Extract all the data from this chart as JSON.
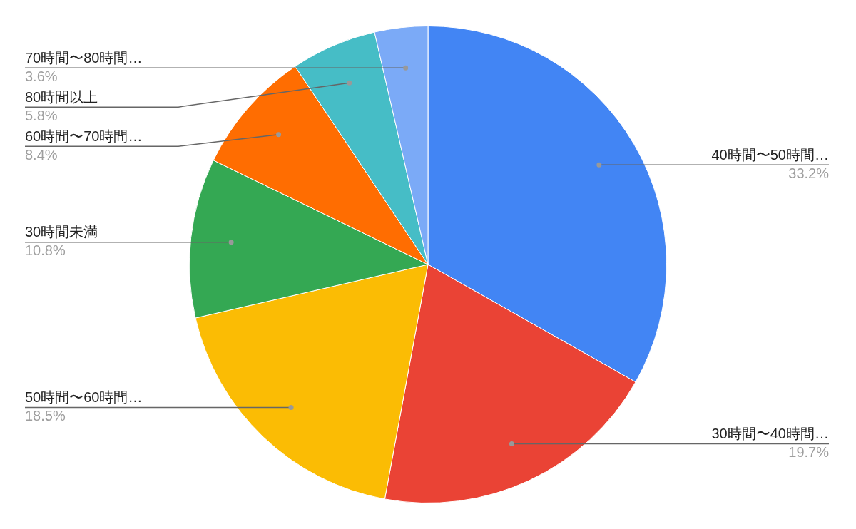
{
  "chart_data": {
    "type": "pie",
    "categories": [
      "40時間〜50時間…",
      "30時間〜40時間…",
      "50時間〜60時間…",
      "30時間未満",
      "60時間〜70時間…",
      "80時間以上",
      "70時間〜80時間…"
    ],
    "values": [
      33.2,
      19.7,
      18.5,
      10.8,
      8.4,
      5.8,
      3.6
    ],
    "value_labels": [
      "33.2%",
      "19.7%",
      "18.5%",
      "10.8%",
      "8.4%",
      "5.8%",
      "3.6%"
    ],
    "colors": [
      "#4285f4",
      "#ea4335",
      "#fbbc04",
      "#34a853",
      "#ff6d01",
      "#46bdc6",
      "#7baaf7"
    ],
    "legend": false
  }
}
